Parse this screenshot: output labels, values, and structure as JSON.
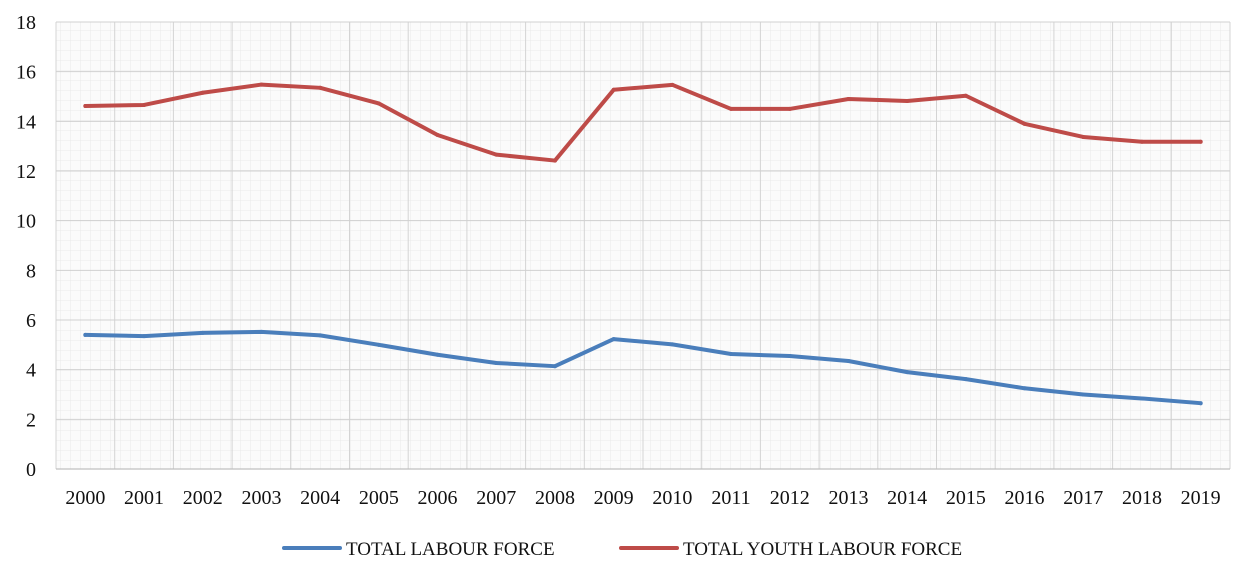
{
  "chart_data": {
    "type": "line",
    "title": "",
    "xlabel": "",
    "ylabel": "",
    "x": [
      "2000",
      "2001",
      "2002",
      "2003",
      "2004",
      "2005",
      "2006",
      "2007",
      "2008",
      "2009",
      "2010",
      "2011",
      "2012",
      "2013",
      "2014",
      "2015",
      "2016",
      "2017",
      "2018",
      "2019"
    ],
    "ylim": [
      0,
      18
    ],
    "yticks": [
      "0",
      "2",
      "4",
      "6",
      "8",
      "10",
      "12",
      "14",
      "16",
      "18"
    ],
    "grid": true,
    "legend_position": "bottom",
    "series": [
      {
        "name": "TOTAL LABOUR FORCE",
        "color": "#4a7ebb",
        "values": [
          5.4,
          5.35,
          5.48,
          5.52,
          5.38,
          5.0,
          4.6,
          4.27,
          4.14,
          5.23,
          5.02,
          4.63,
          4.55,
          4.35,
          3.9,
          3.62,
          3.25,
          3.0,
          2.84,
          2.65
        ]
      },
      {
        "name": "TOTAL YOUTH LABOUR FORCE",
        "color": "#be4b48",
        "values": [
          14.62,
          14.66,
          15.15,
          15.48,
          15.35,
          14.72,
          13.45,
          12.66,
          12.42,
          15.27,
          15.47,
          14.5,
          14.5,
          14.9,
          14.82,
          15.03,
          13.9,
          13.37,
          13.18,
          13.18
        ]
      }
    ]
  }
}
